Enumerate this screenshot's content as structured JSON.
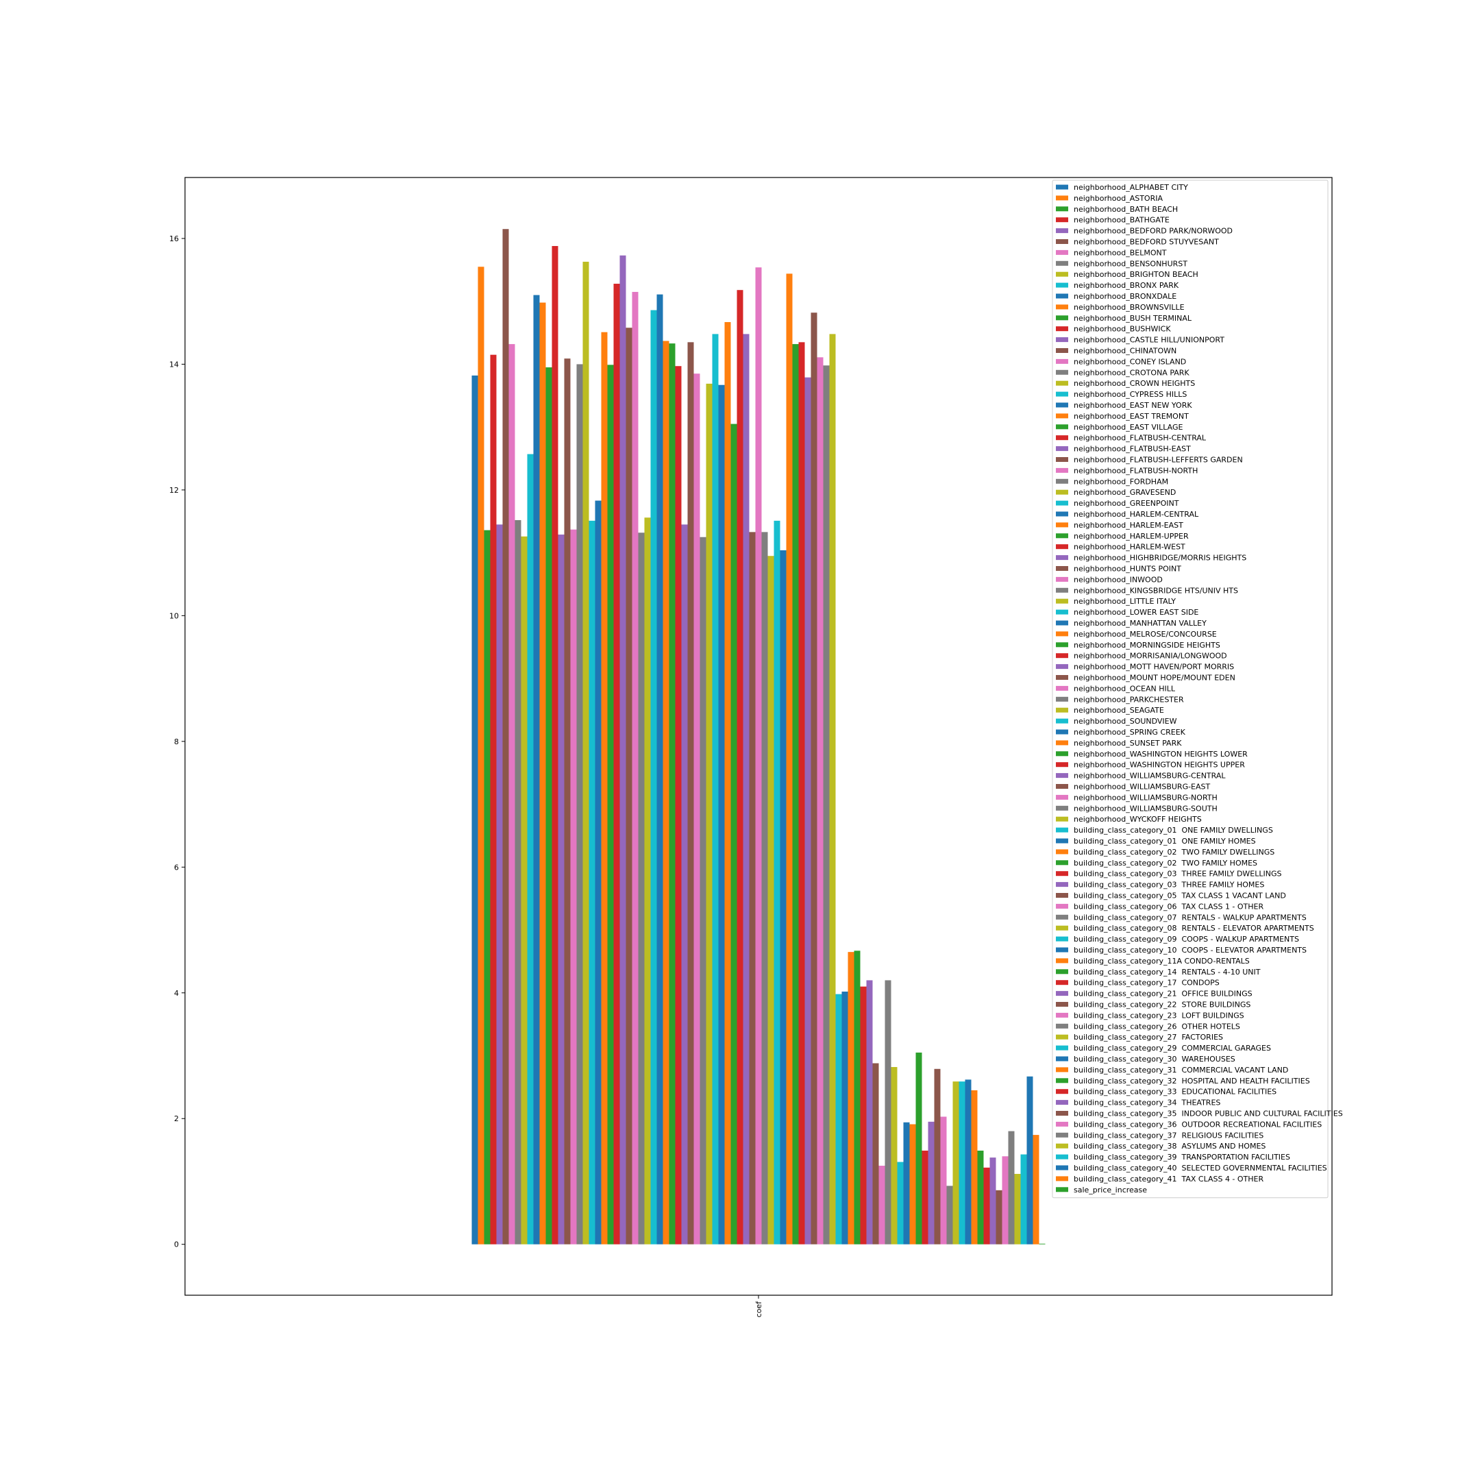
{
  "chart_data": {
    "type": "bar",
    "categories": [
      "coef"
    ],
    "ylim": [
      -0.81,
      16.97
    ],
    "yticks": [
      0,
      2,
      4,
      6,
      8,
      10,
      12,
      14,
      16
    ],
    "legend": "upper right",
    "series": [
      {
        "name": "neighborhood_ALPHABET CITY",
        "color": "#1f77b4",
        "values": [
          13.82
        ]
      },
      {
        "name": "neighborhood_ASTORIA",
        "color": "#ff7f0e",
        "values": [
          15.55
        ]
      },
      {
        "name": "neighborhood_BATH BEACH",
        "color": "#2ca02c",
        "values": [
          11.36
        ]
      },
      {
        "name": "neighborhood_BATHGATE",
        "color": "#d62728",
        "values": [
          14.15
        ]
      },
      {
        "name": "neighborhood_BEDFORD PARK/NORWOOD",
        "color": "#9467bd",
        "values": [
          11.45
        ]
      },
      {
        "name": "neighborhood_BEDFORD STUYVESANT",
        "color": "#8c564b",
        "values": [
          16.15
        ]
      },
      {
        "name": "neighborhood_BELMONT",
        "color": "#e377c2",
        "values": [
          14.32
        ]
      },
      {
        "name": "neighborhood_BENSONHURST",
        "color": "#7f7f7f",
        "values": [
          11.52
        ]
      },
      {
        "name": "neighborhood_BRIGHTON BEACH",
        "color": "#bcbd22",
        "values": [
          11.26
        ]
      },
      {
        "name": "neighborhood_BRONX PARK",
        "color": "#17becf",
        "values": [
          12.57
        ]
      },
      {
        "name": "neighborhood_BRONXDALE",
        "color": "#1f77b4",
        "values": [
          15.1
        ]
      },
      {
        "name": "neighborhood_BROWNSVILLE",
        "color": "#ff7f0e",
        "values": [
          14.98
        ]
      },
      {
        "name": "neighborhood_BUSH TERMINAL",
        "color": "#2ca02c",
        "values": [
          13.95
        ]
      },
      {
        "name": "neighborhood_BUSHWICK",
        "color": "#d62728",
        "values": [
          15.88
        ]
      },
      {
        "name": "neighborhood_CASTLE HILL/UNIONPORT",
        "color": "#9467bd",
        "values": [
          11.29
        ]
      },
      {
        "name": "neighborhood_CHINATOWN",
        "color": "#8c564b",
        "values": [
          14.09
        ]
      },
      {
        "name": "neighborhood_CONEY ISLAND",
        "color": "#e377c2",
        "values": [
          11.37
        ]
      },
      {
        "name": "neighborhood_CROTONA PARK",
        "color": "#7f7f7f",
        "values": [
          14.0
        ]
      },
      {
        "name": "neighborhood_CROWN HEIGHTS",
        "color": "#bcbd22",
        "values": [
          15.63
        ]
      },
      {
        "name": "neighborhood_CYPRESS HILLS",
        "color": "#17becf",
        "values": [
          11.51
        ]
      },
      {
        "name": "neighborhood_EAST NEW YORK",
        "color": "#1f77b4",
        "values": [
          11.83
        ]
      },
      {
        "name": "neighborhood_EAST TREMONT",
        "color": "#ff7f0e",
        "values": [
          14.51
        ]
      },
      {
        "name": "neighborhood_EAST VILLAGE",
        "color": "#2ca02c",
        "values": [
          13.99
        ]
      },
      {
        "name": "neighborhood_FLATBUSH-CENTRAL",
        "color": "#d62728",
        "values": [
          15.28
        ]
      },
      {
        "name": "neighborhood_FLATBUSH-EAST",
        "color": "#9467bd",
        "values": [
          15.73
        ]
      },
      {
        "name": "neighborhood_FLATBUSH-LEFFERTS GARDEN",
        "color": "#8c564b",
        "values": [
          14.58
        ]
      },
      {
        "name": "neighborhood_FLATBUSH-NORTH",
        "color": "#e377c2",
        "values": [
          15.15
        ]
      },
      {
        "name": "neighborhood_FORDHAM",
        "color": "#7f7f7f",
        "values": [
          11.32
        ]
      },
      {
        "name": "neighborhood_GRAVESEND",
        "color": "#bcbd22",
        "values": [
          11.56
        ]
      },
      {
        "name": "neighborhood_GREENPOINT",
        "color": "#17becf",
        "values": [
          14.86
        ]
      },
      {
        "name": "neighborhood_HARLEM-CENTRAL",
        "color": "#1f77b4",
        "values": [
          15.11
        ]
      },
      {
        "name": "neighborhood_HARLEM-EAST",
        "color": "#ff7f0e",
        "values": [
          14.37
        ]
      },
      {
        "name": "neighborhood_HARLEM-UPPER",
        "color": "#2ca02c",
        "values": [
          14.33
        ]
      },
      {
        "name": "neighborhood_HARLEM-WEST",
        "color": "#d62728",
        "values": [
          13.97
        ]
      },
      {
        "name": "neighborhood_HIGHBRIDGE/MORRIS HEIGHTS",
        "color": "#9467bd",
        "values": [
          11.45
        ]
      },
      {
        "name": "neighborhood_HUNTS POINT",
        "color": "#8c564b",
        "values": [
          14.35
        ]
      },
      {
        "name": "neighborhood_INWOOD",
        "color": "#e377c2",
        "values": [
          13.85
        ]
      },
      {
        "name": "neighborhood_KINGSBRIDGE HTS/UNIV HTS",
        "color": "#7f7f7f",
        "values": [
          11.25
        ]
      },
      {
        "name": "neighborhood_LITTLE ITALY",
        "color": "#bcbd22",
        "values": [
          13.69
        ]
      },
      {
        "name": "neighborhood_LOWER EAST SIDE",
        "color": "#17becf",
        "values": [
          14.48
        ]
      },
      {
        "name": "neighborhood_MANHATTAN VALLEY",
        "color": "#1f77b4",
        "values": [
          13.67
        ]
      },
      {
        "name": "neighborhood_MELROSE/CONCOURSE",
        "color": "#ff7f0e",
        "values": [
          14.67
        ]
      },
      {
        "name": "neighborhood_MORNINGSIDE HEIGHTS",
        "color": "#2ca02c",
        "values": [
          13.05
        ]
      },
      {
        "name": "neighborhood_MORRISANIA/LONGWOOD",
        "color": "#d62728",
        "values": [
          15.18
        ]
      },
      {
        "name": "neighborhood_MOTT HAVEN/PORT MORRIS",
        "color": "#9467bd",
        "values": [
          14.48
        ]
      },
      {
        "name": "neighborhood_MOUNT HOPE/MOUNT EDEN",
        "color": "#8c564b",
        "values": [
          11.33
        ]
      },
      {
        "name": "neighborhood_OCEAN HILL",
        "color": "#e377c2",
        "values": [
          15.54
        ]
      },
      {
        "name": "neighborhood_PARKCHESTER",
        "color": "#7f7f7f",
        "values": [
          11.33
        ]
      },
      {
        "name": "neighborhood_SEAGATE",
        "color": "#bcbd22",
        "values": [
          10.95
        ]
      },
      {
        "name": "neighborhood_SOUNDVIEW",
        "color": "#17becf",
        "values": [
          11.51
        ]
      },
      {
        "name": "neighborhood_SPRING CREEK",
        "color": "#1f77b4",
        "values": [
          11.04
        ]
      },
      {
        "name": "neighborhood_SUNSET PARK",
        "color": "#ff7f0e",
        "values": [
          15.44
        ]
      },
      {
        "name": "neighborhood_WASHINGTON HEIGHTS LOWER",
        "color": "#2ca02c",
        "values": [
          14.32
        ]
      },
      {
        "name": "neighborhood_WASHINGTON HEIGHTS UPPER",
        "color": "#d62728",
        "values": [
          14.35
        ]
      },
      {
        "name": "neighborhood_WILLIAMSBURG-CENTRAL",
        "color": "#9467bd",
        "values": [
          13.79
        ]
      },
      {
        "name": "neighborhood_WILLIAMSBURG-EAST",
        "color": "#8c564b",
        "values": [
          14.82
        ]
      },
      {
        "name": "neighborhood_WILLIAMSBURG-NORTH",
        "color": "#e377c2",
        "values": [
          14.11
        ]
      },
      {
        "name": "neighborhood_WILLIAMSBURG-SOUTH",
        "color": "#7f7f7f",
        "values": [
          13.98
        ]
      },
      {
        "name": "neighborhood_WYCKOFF HEIGHTS",
        "color": "#bcbd22",
        "values": [
          14.48
        ]
      },
      {
        "name": "building_class_category_01  ONE FAMILY DWELLINGS",
        "color": "#17becf",
        "values": [
          3.98
        ]
      },
      {
        "name": "building_class_category_01  ONE FAMILY HOMES",
        "color": "#1f77b4",
        "values": [
          4.02
        ]
      },
      {
        "name": "building_class_category_02  TWO FAMILY DWELLINGS",
        "color": "#ff7f0e",
        "values": [
          4.65
        ]
      },
      {
        "name": "building_class_category_02  TWO FAMILY HOMES",
        "color": "#2ca02c",
        "values": [
          4.67
        ]
      },
      {
        "name": "building_class_category_03  THREE FAMILY DWELLINGS",
        "color": "#d62728",
        "values": [
          4.1
        ]
      },
      {
        "name": "building_class_category_03  THREE FAMILY HOMES",
        "color": "#9467bd",
        "values": [
          4.2
        ]
      },
      {
        "name": "building_class_category_05  TAX CLASS 1 VACANT LAND",
        "color": "#8c564b",
        "values": [
          2.88
        ]
      },
      {
        "name": "building_class_category_06  TAX CLASS 1 - OTHER",
        "color": "#e377c2",
        "values": [
          1.25
        ]
      },
      {
        "name": "building_class_category_07  RENTALS - WALKUP APARTMENTS",
        "color": "#7f7f7f",
        "values": [
          4.2
        ]
      },
      {
        "name": "building_class_category_08  RENTALS - ELEVATOR APARTMENTS",
        "color": "#bcbd22",
        "values": [
          2.82
        ]
      },
      {
        "name": "building_class_category_09  COOPS - WALKUP APARTMENTS",
        "color": "#17becf",
        "values": [
          1.31
        ]
      },
      {
        "name": "building_class_category_10  COOPS - ELEVATOR APARTMENTS",
        "color": "#1f77b4",
        "values": [
          1.94
        ]
      },
      {
        "name": "building_class_category_11A CONDO-RENTALS",
        "color": "#ff7f0e",
        "values": [
          1.91
        ]
      },
      {
        "name": "building_class_category_14  RENTALS - 4-10 UNIT",
        "color": "#2ca02c",
        "values": [
          3.05
        ]
      },
      {
        "name": "building_class_category_17  CONDOPS",
        "color": "#d62728",
        "values": [
          1.49
        ]
      },
      {
        "name": "building_class_category_21  OFFICE BUILDINGS",
        "color": "#9467bd",
        "values": [
          1.95
        ]
      },
      {
        "name": "building_class_category_22  STORE BUILDINGS",
        "color": "#8c564b",
        "values": [
          2.79
        ]
      },
      {
        "name": "building_class_category_23  LOFT BUILDINGS",
        "color": "#e377c2",
        "values": [
          2.03
        ]
      },
      {
        "name": "building_class_category_26  OTHER HOTELS",
        "color": "#7f7f7f",
        "values": [
          0.93
        ]
      },
      {
        "name": "building_class_category_27  FACTORIES",
        "color": "#bcbd22",
        "values": [
          2.59
        ]
      },
      {
        "name": "building_class_category_29  COMMERCIAL GARAGES",
        "color": "#17becf",
        "values": [
          2.59
        ]
      },
      {
        "name": "building_class_category_30  WAREHOUSES",
        "color": "#1f77b4",
        "values": [
          2.62
        ]
      },
      {
        "name": "building_class_category_31  COMMERCIAL VACANT LAND",
        "color": "#ff7f0e",
        "values": [
          2.45
        ]
      },
      {
        "name": "building_class_category_32  HOSPITAL AND HEALTH FACILITIES",
        "color": "#2ca02c",
        "values": [
          1.49
        ]
      },
      {
        "name": "building_class_category_33  EDUCATIONAL FACILITIES",
        "color": "#d62728",
        "values": [
          1.22
        ]
      },
      {
        "name": "building_class_category_34  THEATRES",
        "color": "#9467bd",
        "values": [
          1.38
        ]
      },
      {
        "name": "building_class_category_35  INDOOR PUBLIC AND CULTURAL FACILITIES",
        "color": "#8c564b",
        "values": [
          0.86
        ]
      },
      {
        "name": "building_class_category_36  OUTDOOR RECREATIONAL FACILITIES",
        "color": "#e377c2",
        "values": [
          1.4
        ]
      },
      {
        "name": "building_class_category_37  RELIGIOUS FACILITIES",
        "color": "#7f7f7f",
        "values": [
          1.8
        ]
      },
      {
        "name": "building_class_category_38  ASYLUMS AND HOMES",
        "color": "#bcbd22",
        "values": [
          1.12
        ]
      },
      {
        "name": "building_class_category_39  TRANSPORTATION FACILITIES",
        "color": "#17becf",
        "values": [
          1.43
        ]
      },
      {
        "name": "building_class_category_40  SELECTED GOVERNMENTAL FACILITIES",
        "color": "#1f77b4",
        "values": [
          2.67
        ]
      },
      {
        "name": "building_class_category_41  TAX CLASS 4 - OTHER",
        "color": "#ff7f0e",
        "values": [
          1.74
        ]
      },
      {
        "name": "sale_price_increase",
        "color": "#2ca02c",
        "values": [
          0.01
        ]
      }
    ]
  }
}
